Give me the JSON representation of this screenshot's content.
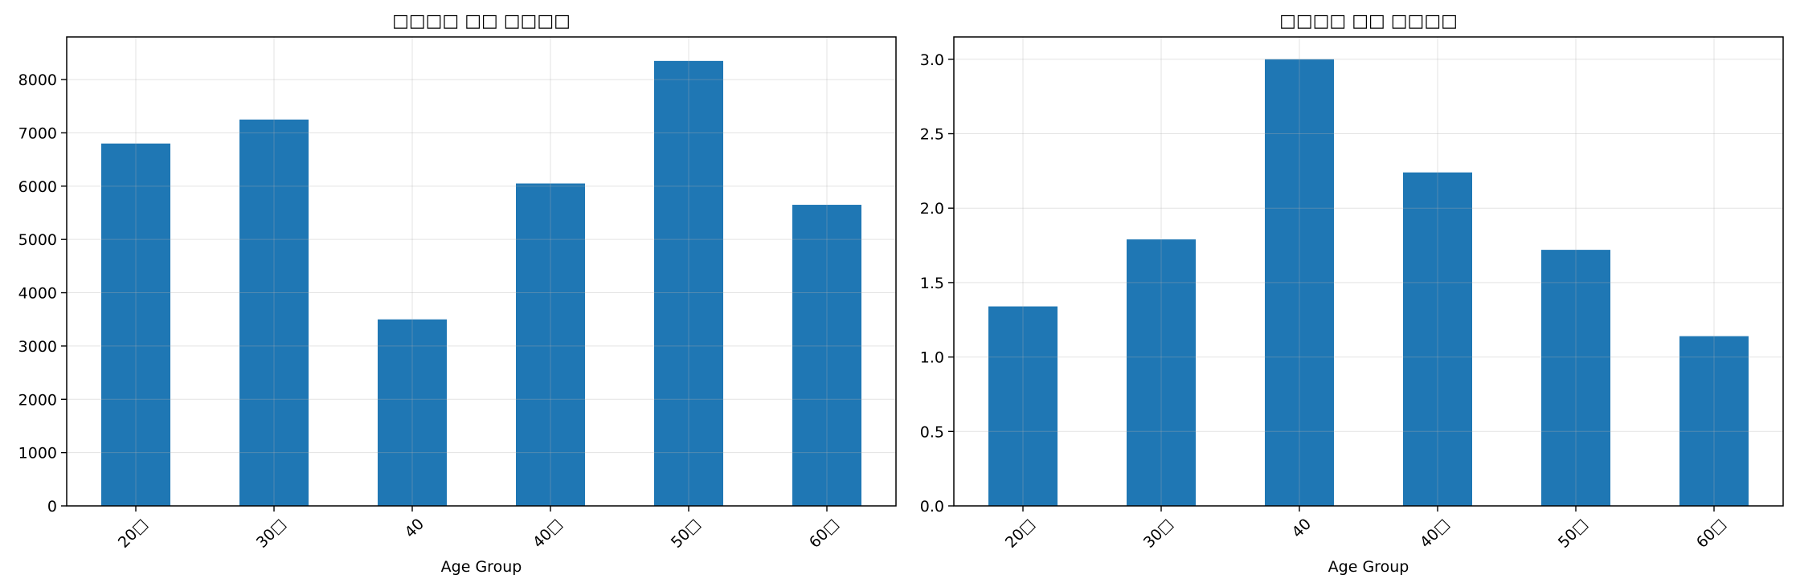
{
  "chart_data": [
    {
      "type": "bar",
      "title": "□□□□ □□ □□□□",
      "xlabel": "Age Group",
      "ylabel": "",
      "categories": [
        "20□",
        "30□",
        "40",
        "40□",
        "50□",
        "60□"
      ],
      "values": [
        6800,
        7250,
        3500,
        6050,
        8350,
        5650
      ],
      "ylim": [
        0,
        8800
      ],
      "yticks": [
        0,
        1000,
        2000,
        3000,
        4000,
        5000,
        6000,
        7000,
        8000
      ],
      "ytick_labels": [
        "0",
        "1000",
        "2000",
        "3000",
        "4000",
        "5000",
        "6000",
        "7000",
        "8000"
      ],
      "grid": true,
      "color": "#1f77b4"
    },
    {
      "type": "bar",
      "title": "□□□□ □□ □□□□",
      "xlabel": "Age Group",
      "ylabel": "",
      "categories": [
        "20□",
        "30□",
        "40",
        "40□",
        "50□",
        "60□"
      ],
      "values": [
        1.34,
        1.79,
        3.0,
        2.24,
        1.72,
        1.14
      ],
      "ylim": [
        0,
        3.15
      ],
      "yticks": [
        0,
        0.5,
        1.0,
        1.5,
        2.0,
        2.5,
        3.0
      ],
      "ytick_labels": [
        "0.0",
        "0.5",
        "1.0",
        "1.5",
        "2.0",
        "2.5",
        "3.0"
      ],
      "grid": true,
      "color": "#1f77b4"
    }
  ]
}
